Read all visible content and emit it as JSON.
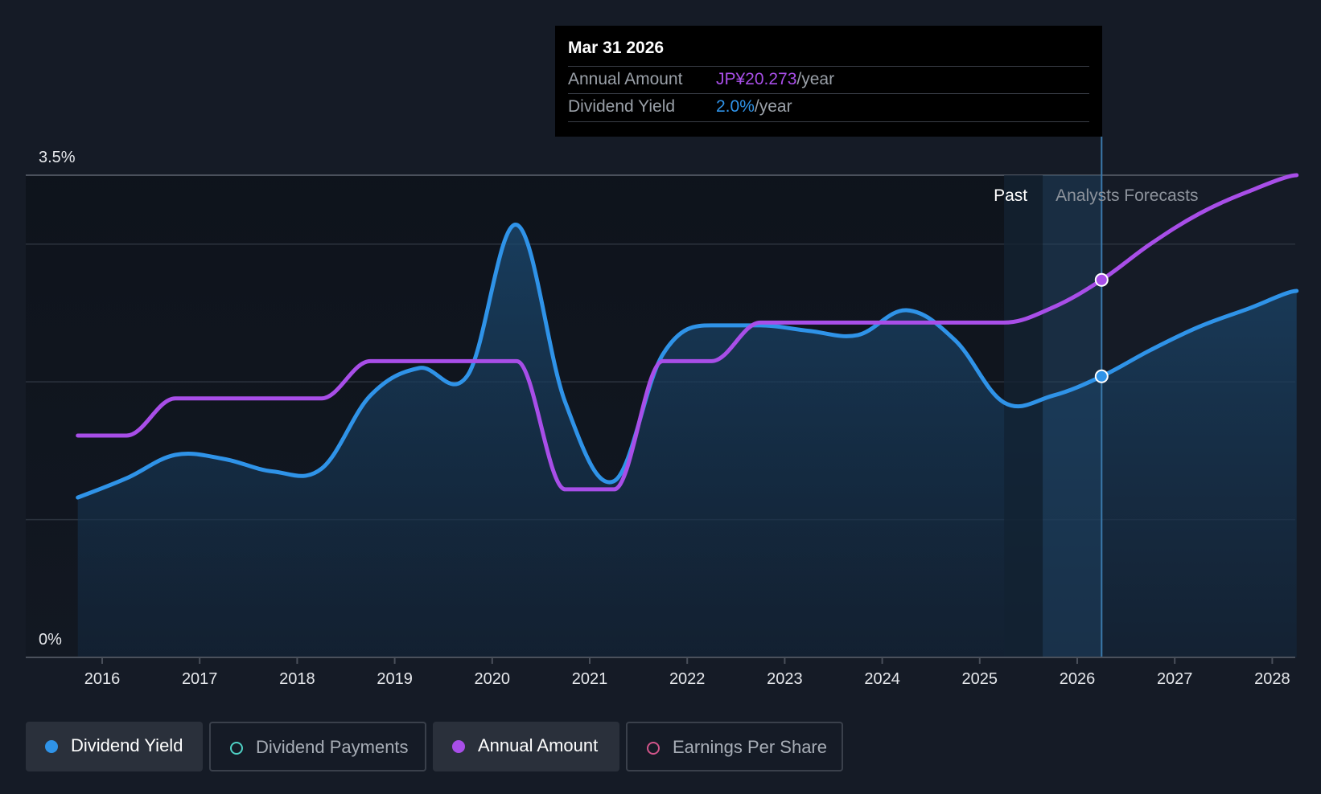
{
  "chart_data": {
    "type": "line",
    "title": "",
    "xlabel": "",
    "ylabel": "",
    "ylim": [
      0,
      3.5
    ],
    "y_axis_labels": [
      "3.5%",
      "0%"
    ],
    "x_ticks": [
      "2016",
      "2017",
      "2018",
      "2019",
      "2020",
      "2021",
      "2022",
      "2023",
      "2024",
      "2025",
      "2026",
      "2027",
      "2028"
    ],
    "past_label": "Past",
    "forecast_label": "Analysts Forecasts",
    "forecast_start": 2025.25,
    "series": [
      {
        "name": "Dividend Yield",
        "color": "#2f93e8",
        "points": [
          [
            2015.75,
            1.16
          ],
          [
            2016.25,
            1.3
          ],
          [
            2016.75,
            1.47
          ],
          [
            2017.25,
            1.44
          ],
          [
            2017.75,
            1.35
          ],
          [
            2018.25,
            1.37
          ],
          [
            2018.75,
            1.9
          ],
          [
            2019.25,
            2.1
          ],
          [
            2019.75,
            2.05
          ],
          [
            2020.25,
            3.14
          ],
          [
            2020.75,
            1.85
          ],
          [
            2021.25,
            1.28
          ],
          [
            2021.75,
            2.2
          ],
          [
            2022.25,
            2.41
          ],
          [
            2022.75,
            2.41
          ],
          [
            2023.25,
            2.37
          ],
          [
            2023.75,
            2.34
          ],
          [
            2024.25,
            2.52
          ],
          [
            2024.75,
            2.3
          ],
          [
            2025.25,
            1.85
          ],
          [
            2025.75,
            1.9
          ],
          [
            2026.25,
            2.04
          ],
          [
            2026.75,
            2.23
          ],
          [
            2027.25,
            2.4
          ],
          [
            2027.75,
            2.53
          ],
          [
            2028.25,
            2.66
          ]
        ]
      },
      {
        "name": "Annual Amount",
        "color": "#a84ee8",
        "points": [
          [
            2015.75,
            1.61
          ],
          [
            2016.25,
            1.61
          ],
          [
            2016.75,
            1.88
          ],
          [
            2017.25,
            1.88
          ],
          [
            2017.75,
            1.88
          ],
          [
            2018.25,
            1.88
          ],
          [
            2018.75,
            2.15
          ],
          [
            2019.25,
            2.15
          ],
          [
            2019.75,
            2.15
          ],
          [
            2020.25,
            2.15
          ],
          [
            2020.75,
            1.22
          ],
          [
            2021.25,
            1.22
          ],
          [
            2021.75,
            2.15
          ],
          [
            2022.25,
            2.15
          ],
          [
            2022.75,
            2.43
          ],
          [
            2023.25,
            2.43
          ],
          [
            2023.75,
            2.43
          ],
          [
            2024.25,
            2.43
          ],
          [
            2024.75,
            2.43
          ],
          [
            2025.25,
            2.43
          ],
          [
            2025.75,
            2.54
          ],
          [
            2026.25,
            2.74
          ],
          [
            2026.75,
            3.0
          ],
          [
            2027.25,
            3.22
          ],
          [
            2027.75,
            3.38
          ],
          [
            2028.25,
            3.5
          ]
        ]
      }
    ],
    "highlight_x": 2026.25
  },
  "tooltip": {
    "date": "Mar 31 2026",
    "annual_amount_label": "Annual Amount",
    "annual_amount_value": "JP¥20.273",
    "annual_amount_unit": "/year",
    "dividend_yield_label": "Dividend Yield",
    "dividend_yield_value": "2.0%",
    "dividend_yield_unit": "/year"
  },
  "legend": {
    "dividend_yield": "Dividend Yield",
    "dividend_payments": "Dividend Payments",
    "annual_amount": "Annual Amount",
    "earnings_per_share": "Earnings Per Share"
  },
  "colors": {
    "background": "#151b26",
    "yield": "#2f93e8",
    "annual": "#a84ee8",
    "payments": "#4fd1c5",
    "eps": "#d1558a"
  }
}
